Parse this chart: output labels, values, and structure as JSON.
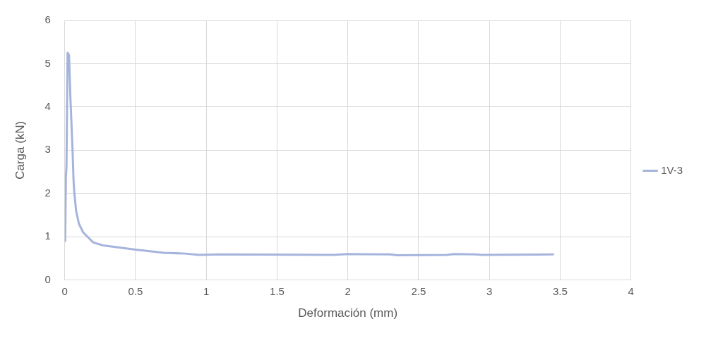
{
  "chart_data": {
    "type": "line",
    "xlabel": "Deformación (mm)",
    "ylabel": "Carga (kN)",
    "xlim": [
      0,
      4
    ],
    "xticks": [
      0,
      0.5,
      1,
      1.5,
      2,
      2.5,
      3,
      3.5,
      4
    ],
    "ylim": [
      0,
      6
    ],
    "yticks": [
      0,
      1,
      2,
      3,
      4,
      5,
      6
    ],
    "grid": true,
    "legend": "right",
    "marker": "none",
    "line_style": "solid",
    "series": [
      {
        "name": "1V-3",
        "color": "#a5b4dc",
        "x": [
          0.003,
          0.008,
          0.012,
          0.02,
          0.03,
          0.04,
          0.055,
          0.062,
          0.068,
          0.08,
          0.1,
          0.13,
          0.2,
          0.27,
          0.5,
          0.7,
          0.85,
          0.95,
          1.1,
          1.9,
          2.0,
          2.3,
          2.35,
          2.7,
          2.75,
          2.9,
          2.95,
          3.45
        ],
        "values": [
          0.9,
          2.4,
          2.6,
          5.25,
          5.2,
          4.2,
          3.0,
          2.3,
          2.0,
          1.6,
          1.3,
          1.1,
          0.87,
          0.8,
          0.7,
          0.63,
          0.61,
          0.58,
          0.59,
          0.58,
          0.6,
          0.59,
          0.57,
          0.58,
          0.6,
          0.59,
          0.58,
          0.59
        ]
      }
    ]
  }
}
